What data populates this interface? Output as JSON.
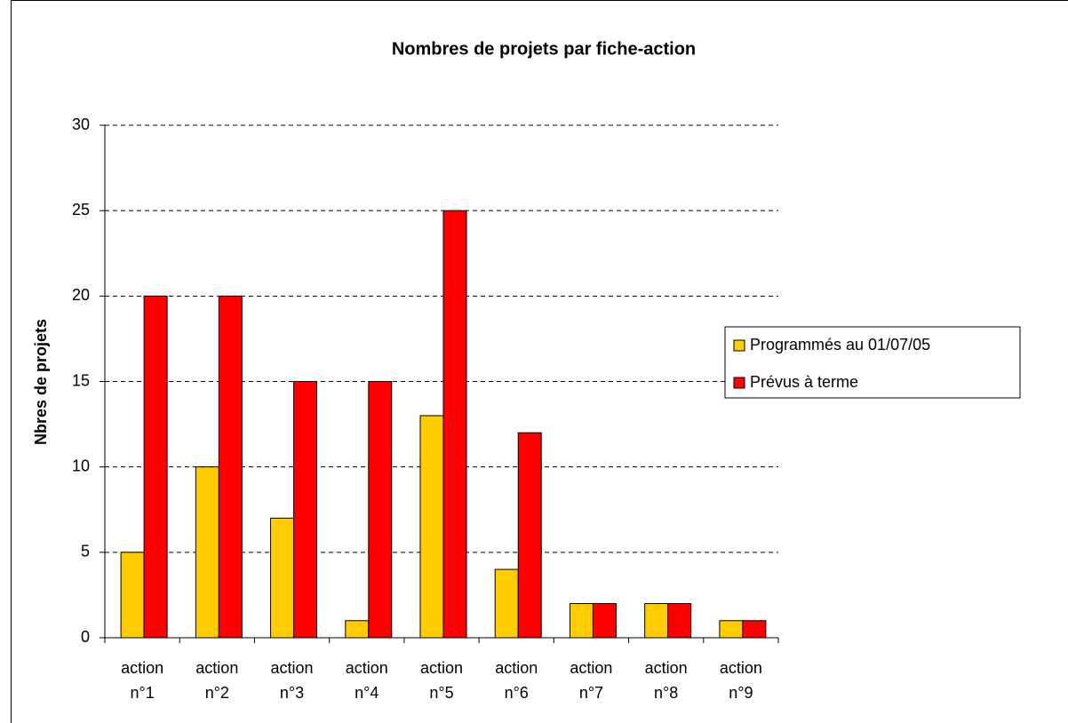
{
  "chart_data": {
    "type": "bar",
    "title": "Nombres de projets par fiche-action",
    "y_label": "Nbres de projets",
    "categories": [
      "action n°1",
      "action n°2",
      "action n°3",
      "action n°4",
      "action n°5",
      "action n°6",
      "action n°7",
      "action n°8",
      "action n°9"
    ],
    "series": [
      {
        "name": "Programmés au 01/07/05",
        "color": "#FFCC00",
        "values": [
          5,
          10,
          7,
          1,
          13,
          4,
          2,
          2,
          1
        ]
      },
      {
        "name": "Prévus à terme",
        "color": "#FF0000",
        "values": [
          20,
          20,
          15,
          15,
          25,
          12,
          2,
          2,
          1
        ]
      }
    ],
    "ylim": [
      0,
      30
    ],
    "yticks": [
      0,
      5,
      10,
      15,
      20,
      25,
      30
    ],
    "grid": true,
    "legend": "right"
  }
}
